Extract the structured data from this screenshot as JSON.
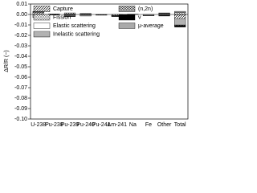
{
  "chart_data": {
    "type": "bar",
    "stacked": true,
    "ylabel": "ΔR/R (−)",
    "categories": [
      "U-238",
      "Pu-238",
      "Pu-239",
      "Pu-240",
      "Pu-241",
      "Am-241",
      "Na",
      "Fe",
      "Other",
      "Total"
    ],
    "ylim": [
      -0.1,
      0.01
    ],
    "yticks": [
      0.01,
      {
        "value": 0,
        "label": "0.00"
      },
      -0.01,
      -0.02,
      -0.03,
      -0.04,
      -0.05,
      -0.06,
      -0.07,
      -0.08,
      -0.09,
      {
        "value": -0.1,
        "label": "-0.10"
      }
    ],
    "series": [
      {
        "name": "Capture",
        "color": "#000000",
        "pattern": "diagonal",
        "values": [
          0.002,
          -0.0005,
          0.0005,
          0.0005,
          -0.0005,
          -0.001,
          0,
          0,
          0.0005,
          -0.004
        ]
      },
      {
        "name": "Fission",
        "color": "#555555",
        "pattern": "crosshatch",
        "values": [
          0.0005,
          0.0005,
          0.001,
          0.0005,
          0,
          0,
          0,
          0,
          0,
          0.002
        ]
      },
      {
        "name": "Elastic scattering",
        "color": "#ffffff",
        "pattern": "solid",
        "values": [
          0,
          0,
          0,
          0,
          0,
          0,
          0.0003,
          -0.0008,
          0.0005,
          0
        ]
      },
      {
        "name": "Inelastic scattering",
        "color": "#000000",
        "pattern": "horizontal",
        "values": [
          -0.003,
          0,
          -0.0015,
          -0.0015,
          0,
          0,
          0,
          -0.0005,
          -0.001,
          -0.006
        ]
      },
      {
        "name": "(n,2n)",
        "color": "#333333",
        "pattern": "checker",
        "values": [
          0,
          0,
          0,
          0,
          0,
          -0.0005,
          0,
          0,
          0,
          -0.0005
        ]
      },
      {
        "name": "ν",
        "color": "#000000",
        "pattern": "solid",
        "values": [
          0,
          0,
          -0.0005,
          0,
          -0.0002,
          -0.0005,
          0,
          0,
          -0.0005,
          -0.0015
        ]
      },
      {
        "name": "μ-average",
        "color": "#aaaaaa",
        "pattern": "solid",
        "values": [
          0.0005,
          0,
          0,
          0,
          0,
          0,
          0,
          0,
          0.0005,
          0.001
        ]
      }
    ]
  }
}
